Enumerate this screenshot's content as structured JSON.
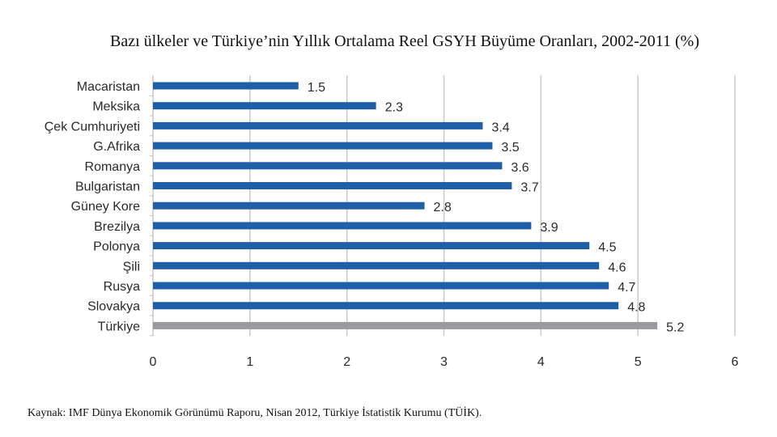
{
  "chart_data": {
    "type": "bar",
    "orientation": "horizontal",
    "title": "Bazı ülkeler ve Türkiye’nin Yıllık Ortalama Reel GSYH Büyüme Oranları, 2002-2011 (%)",
    "categories": [
      "Macaristan",
      "Meksika",
      "Çek Cumhuriyeti",
      "G.Afrika",
      "Romanya",
      "Bulgaristan",
      "Güney Kore",
      "Brezilya",
      "Polonya",
      "Şili",
      "Rusya",
      "Slovakya",
      "Türkiye"
    ],
    "values": [
      1.5,
      2.3,
      3.4,
      3.5,
      3.6,
      3.7,
      2.8,
      3.9,
      4.5,
      4.6,
      4.7,
      4.8,
      5.2
    ],
    "value_labels": [
      "1.5",
      "2.3",
      "3.4",
      "3.5",
      "3.6",
      "3.7",
      "2.8",
      "3.9",
      "4.5",
      "4.6",
      "4.7",
      "4.8",
      "5.2"
    ],
    "xlim": [
      0,
      6
    ],
    "xticks": [
      "0",
      "1",
      "2",
      "3",
      "4",
      "5",
      "6"
    ],
    "grid": "vertical",
    "colors": {
      "default": "#1f5fa8",
      "highlight": "#9a9a9e",
      "grid": "#c8c8c8"
    },
    "highlight_category": "Türkiye"
  },
  "source": "Kaynak: IMF Dünya Ekonomik Görünümü Raporu, Nisan 2012, Türkiye İstatistik Kurumu (TÜİK)."
}
